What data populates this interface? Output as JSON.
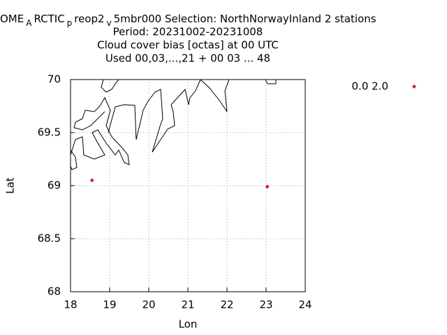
{
  "chart_data": {
    "type": "scatter",
    "title_segments": [
      "OME",
      "A",
      "RCTIC",
      "p",
      "reop2",
      "v",
      "5mbr000   Selection: NorthNorwayInland       2 stations"
    ],
    "subtitle_lines": [
      "Period: 20231002-20231008",
      "Cloud cover bias [octas] at  00 UTC",
      "Used  00,03,...,21 + 00 03 ... 48"
    ],
    "x_label": "Lon",
    "y_label": "Lat",
    "series": [
      {
        "name": "0.0 2.0",
        "color": "#e41a1c",
        "x": [
          18.55,
          23.03
        ],
        "values": [
          69.05,
          68.99
        ]
      }
    ],
    "xlim": [
      18,
      24
    ],
    "xticks": [
      18,
      19,
      20,
      21,
      22,
      23,
      24
    ],
    "ylim": [
      68,
      70
    ],
    "yticks": [
      68,
      68.5,
      69,
      69.5,
      70
    ],
    "grid": true
  }
}
